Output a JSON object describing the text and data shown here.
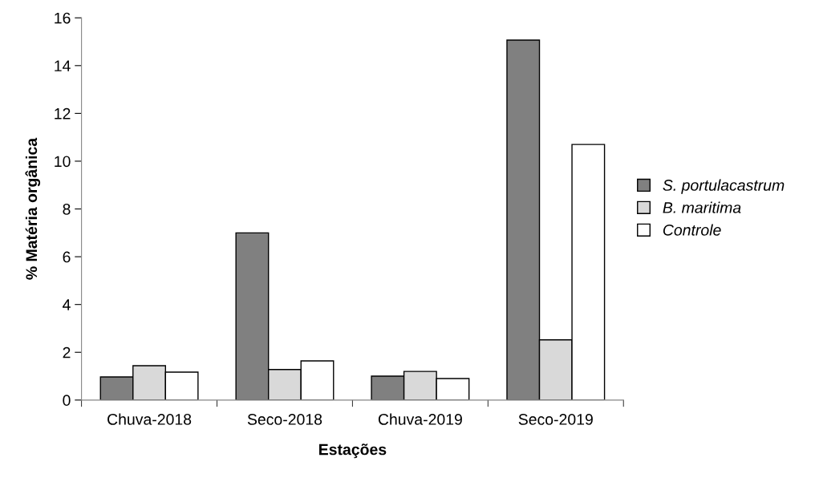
{
  "chart_data": {
    "type": "bar",
    "xlabel": "Estações",
    "ylabel": "% Matéria orgânica",
    "categories": [
      "Chuva-2018",
      "Seco-2018",
      "Chuva-2019",
      "Seco-2019"
    ],
    "series": [
      {
        "name": "S. portulacastrum",
        "color": "#808080",
        "values": [
          0.97,
          7.0,
          1.0,
          15.07
        ]
      },
      {
        "name": "B. maritima",
        "color": "#d9d9d9",
        "values": [
          1.44,
          1.28,
          1.2,
          2.52
        ]
      },
      {
        "name": "Controle",
        "color": "#ffffff",
        "values": [
          1.17,
          1.64,
          0.9,
          10.7
        ]
      }
    ],
    "ylim": [
      0,
      16
    ],
    "yticks": [
      0,
      2,
      4,
      6,
      8,
      10,
      12,
      14,
      16
    ],
    "grid": false,
    "legend": "right"
  }
}
